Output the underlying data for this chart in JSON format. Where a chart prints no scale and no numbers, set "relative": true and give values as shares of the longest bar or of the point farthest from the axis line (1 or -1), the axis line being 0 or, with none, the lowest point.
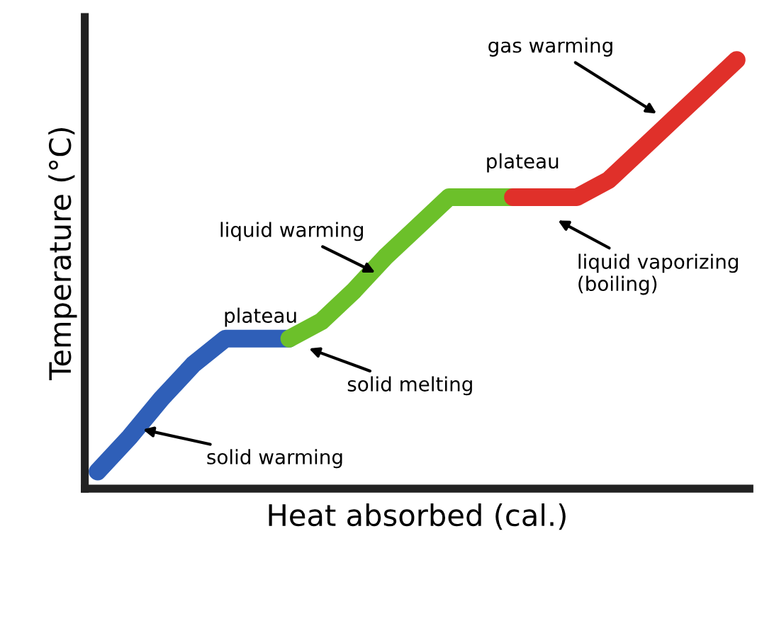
{
  "chart_data": {
    "type": "line",
    "relative": true,
    "xlabel": "Heat absorbed (cal.)",
    "ylabel": "Temperature (°C)",
    "categories": [
      null,
      null,
      null,
      null,
      null,
      null,
      null,
      null,
      null,
      null,
      null,
      null,
      null,
      null,
      null,
      null,
      null,
      null,
      null,
      null,
      null
    ],
    "series": [
      {
        "color": "#2f5fb8",
        "values": [
          0.04,
          0.12,
          0.21,
          0.29,
          0.35,
          0.35,
          0.35,
          null,
          null,
          null,
          null,
          null,
          null,
          null,
          null,
          null,
          null,
          null,
          null,
          null,
          null
        ]
      },
      {
        "color": "#6cc02a",
        "values": [
          null,
          null,
          null,
          null,
          null,
          null,
          0.35,
          0.39,
          0.46,
          0.54,
          0.61,
          0.68,
          0.68,
          0.68,
          null,
          null,
          null,
          null,
          null,
          null,
          null
        ]
      },
      {
        "color": "#e0302a",
        "values": [
          null,
          null,
          null,
          null,
          null,
          null,
          null,
          null,
          null,
          null,
          null,
          null,
          null,
          0.68,
          0.68,
          0.68,
          0.72,
          0.79,
          0.86,
          0.93,
          1.0
        ]
      }
    ],
    "annotations": [
      "solid warming",
      "plateau",
      "solid melting",
      "liquid warming",
      "plateau",
      "liquid vaporizing\n(boiling)",
      "gas warming"
    ],
    "grid": false,
    "line_style": "solid"
  }
}
